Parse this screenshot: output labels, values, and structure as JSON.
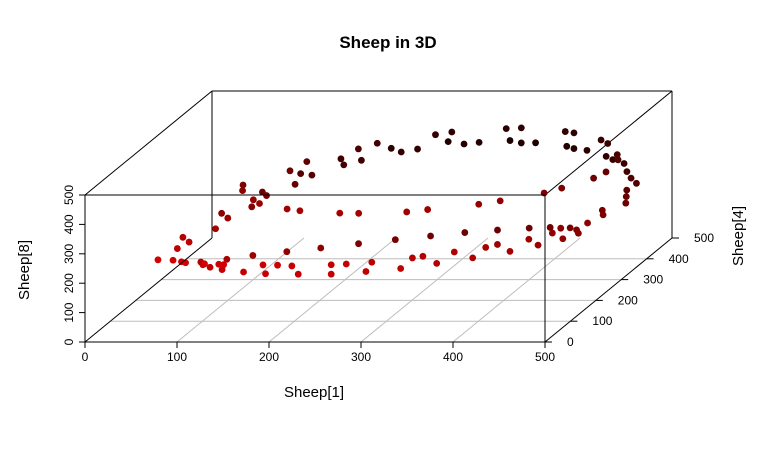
{
  "chart_data": {
    "type": "scatter",
    "title": "Sheep in 3D",
    "xlabel": "Sheep[1]",
    "ylabel": "Sheep[4]",
    "zlabel": "Sheep[8]",
    "xlim": [
      0,
      500
    ],
    "ylim": [
      0,
      500
    ],
    "zlim": [
      0,
      500
    ],
    "x_ticks": [
      0,
      100,
      200,
      300,
      400,
      500
    ],
    "y_ticks": [
      0,
      100,
      200,
      300,
      400,
      500
    ],
    "z_ticks": [
      0,
      100,
      200,
      300,
      400,
      500
    ],
    "grid": true,
    "color_gradient": [
      "#ff0000",
      "#000000"
    ],
    "point_size_label": "filled circles",
    "series": [
      {
        "points": [
          [
            60,
            70,
            230
          ],
          [
            80,
            120,
            255
          ],
          [
            100,
            200,
            280
          ],
          [
            120,
            280,
            300
          ],
          [
            150,
            350,
            320
          ],
          [
            190,
            400,
            335
          ],
          [
            240,
            440,
            345
          ],
          [
            300,
            465,
            350
          ],
          [
            360,
            470,
            345
          ],
          [
            420,
            455,
            330
          ],
          [
            470,
            420,
            310
          ],
          [
            500,
            360,
            285
          ],
          [
            505,
            300,
            260
          ],
          [
            480,
            240,
            235
          ],
          [
            430,
            190,
            215
          ],
          [
            360,
            150,
            200
          ],
          [
            280,
            115,
            190
          ],
          [
            200,
            90,
            195
          ],
          [
            130,
            75,
            210
          ],
          [
            90,
            70,
            220
          ],
          [
            70,
            110,
            240
          ],
          [
            95,
            170,
            265
          ],
          [
            115,
            240,
            290
          ],
          [
            140,
            320,
            310
          ],
          [
            175,
            385,
            330
          ],
          [
            225,
            430,
            342
          ],
          [
            285,
            460,
            348
          ],
          [
            345,
            468,
            346
          ],
          [
            405,
            458,
            334
          ],
          [
            455,
            430,
            316
          ],
          [
            490,
            375,
            292
          ],
          [
            500,
            320,
            268
          ],
          [
            490,
            265,
            245
          ],
          [
            450,
            210,
            222
          ],
          [
            390,
            165,
            205
          ],
          [
            320,
            130,
            194
          ],
          [
            240,
            100,
            192
          ],
          [
            170,
            85,
            202
          ],
          [
            110,
            72,
            215
          ],
          [
            75,
            75,
            225
          ],
          [
            65,
            150,
            250
          ],
          [
            85,
            230,
            275
          ],
          [
            110,
            300,
            298
          ],
          [
            135,
            360,
            318
          ],
          [
            165,
            410,
            333
          ],
          [
            210,
            445,
            344
          ],
          [
            265,
            470,
            349
          ],
          [
            330,
            478,
            347
          ],
          [
            395,
            466,
            336
          ],
          [
            445,
            440,
            320
          ],
          [
            480,
            395,
            300
          ],
          [
            495,
            340,
            276
          ],
          [
            485,
            280,
            250
          ],
          [
            455,
            225,
            228
          ],
          [
            400,
            175,
            208
          ],
          [
            330,
            135,
            196
          ],
          [
            255,
            105,
            191
          ],
          [
            185,
            88,
            199
          ],
          [
            125,
            74,
            212
          ],
          [
            85,
            72,
            222
          ],
          [
            100,
            260,
            350
          ],
          [
            150,
            330,
            380
          ],
          [
            210,
            390,
            400
          ],
          [
            280,
            430,
            410
          ],
          [
            350,
            450,
            410
          ],
          [
            410,
            440,
            400
          ],
          [
            455,
            410,
            385
          ],
          [
            480,
            360,
            365
          ],
          [
            470,
            300,
            345
          ],
          [
            430,
            250,
            330
          ],
          [
            370,
            210,
            320
          ],
          [
            300,
            180,
            315
          ],
          [
            230,
            170,
            318
          ],
          [
            170,
            180,
            325
          ],
          [
            125,
            210,
            335
          ],
          [
            105,
            240,
            345
          ],
          [
            140,
            300,
            370
          ],
          [
            195,
            370,
            395
          ],
          [
            265,
            420,
            408
          ],
          [
            335,
            445,
            411
          ],
          [
            400,
            442,
            403
          ],
          [
            445,
            420,
            390
          ],
          [
            475,
            375,
            372
          ],
          [
            478,
            320,
            352
          ],
          [
            445,
            265,
            336
          ],
          [
            390,
            222,
            323
          ],
          [
            320,
            190,
            316
          ],
          [
            250,
            172,
            316
          ],
          [
            185,
            176,
            322
          ],
          [
            135,
            198,
            331
          ],
          [
            90,
            130,
            180
          ],
          [
            130,
            190,
            160
          ],
          [
            190,
            240,
            150
          ],
          [
            260,
            280,
            150
          ],
          [
            330,
            300,
            160
          ],
          [
            400,
            300,
            175
          ],
          [
            450,
            280,
            190
          ],
          [
            470,
            240,
            200
          ],
          [
            440,
            190,
            195
          ],
          [
            380,
            150,
            180
          ],
          [
            310,
            120,
            165
          ],
          [
            240,
            100,
            160
          ],
          [
            170,
            95,
            165
          ],
          [
            120,
            105,
            172
          ],
          [
            95,
            120,
            178
          ],
          [
            110,
            160,
            168
          ],
          [
            160,
            215,
            155
          ],
          [
            225,
            262,
            149
          ],
          [
            295,
            292,
            154
          ],
          [
            365,
            302,
            167
          ],
          [
            425,
            292,
            183
          ],
          [
            462,
            262,
            196
          ],
          [
            460,
            215,
            199
          ],
          [
            415,
            170,
            188
          ],
          [
            345,
            135,
            172
          ],
          [
            275,
            110,
            162
          ],
          [
            205,
            97,
            162
          ],
          [
            145,
            99,
            168
          ],
          [
            105,
            112,
            175
          ]
        ]
      }
    ]
  }
}
